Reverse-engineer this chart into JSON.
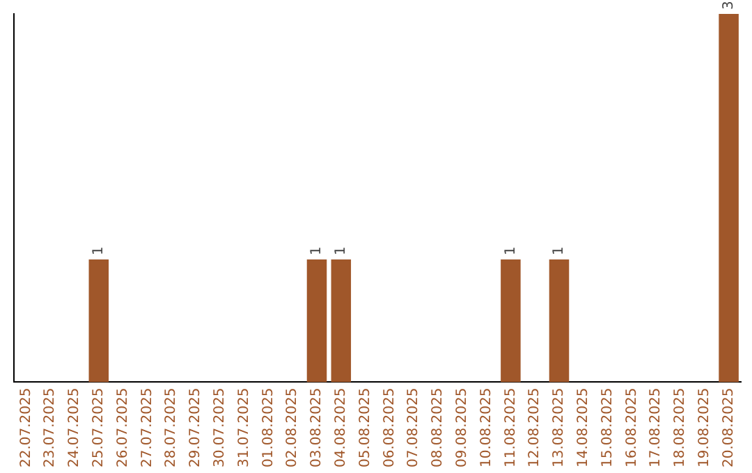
{
  "chart_data": {
    "type": "bar",
    "categories": [
      "22.07.2025",
      "23.07.2025",
      "24.07.2025",
      "25.07.2025",
      "26.07.2025",
      "27.07.2025",
      "28.07.2025",
      "29.07.2025",
      "30.07.2025",
      "31.07.2025",
      "01.08.2025",
      "02.08.2025",
      "03.08.2025",
      "04.08.2025",
      "05.08.2025",
      "06.08.2025",
      "07.08.2025",
      "08.08.2025",
      "09.08.2025",
      "10.08.2025",
      "11.08.2025",
      "12.08.2025",
      "13.08.2025",
      "14.08.2025",
      "15.08.2025",
      "16.08.2025",
      "17.08.2025",
      "18.08.2025",
      "19.08.2025",
      "20.08.2025"
    ],
    "values": [
      0,
      0,
      0,
      1,
      0,
      0,
      0,
      0,
      0,
      0,
      0,
      0,
      1,
      1,
      0,
      0,
      0,
      0,
      0,
      0,
      1,
      0,
      1,
      0,
      0,
      0,
      0,
      0,
      0,
      3
    ],
    "color": "#a0572a",
    "ylim": [
      0,
      3
    ],
    "value_labels": [
      null,
      null,
      null,
      "1",
      null,
      null,
      null,
      null,
      null,
      null,
      null,
      null,
      "1",
      "1",
      null,
      null,
      null,
      null,
      null,
      null,
      "1",
      null,
      "1",
      null,
      null,
      null,
      null,
      null,
      null,
      "3"
    ],
    "tick_labels": "x",
    "grid": false,
    "legend": false
  }
}
